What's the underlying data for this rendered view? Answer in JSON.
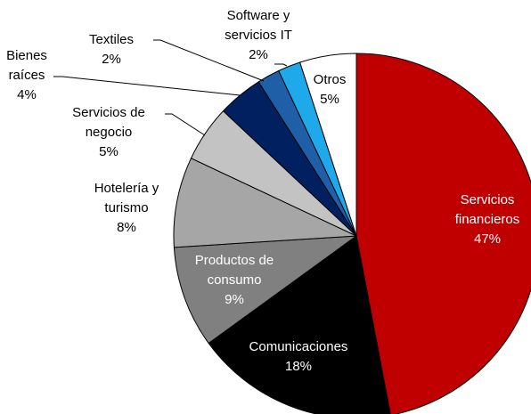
{
  "chart_data": {
    "type": "pie",
    "categories": [
      "Servicios\nfinancieros",
      "Comunicaciones",
      "Productos de\nconsumo",
      "Hotelería y\nturismo",
      "Servicios de\nnegocio",
      "Bienes\nraíces",
      "Textiles",
      "Software y\nservicios IT",
      "Otros"
    ],
    "values": [
      47,
      18,
      9,
      8,
      5,
      4,
      2,
      2,
      5
    ],
    "value_labels": [
      "47%",
      "18%",
      "9%",
      "8%",
      "5%",
      "4%",
      "2%",
      "2%",
      "5%"
    ],
    "colors": [
      "#c00000",
      "#000000",
      "#808080",
      "#a6a6a6",
      "#c3c3c3",
      "#002060",
      "#1f5fa8",
      "#1eaaea",
      "#ffffff"
    ]
  }
}
